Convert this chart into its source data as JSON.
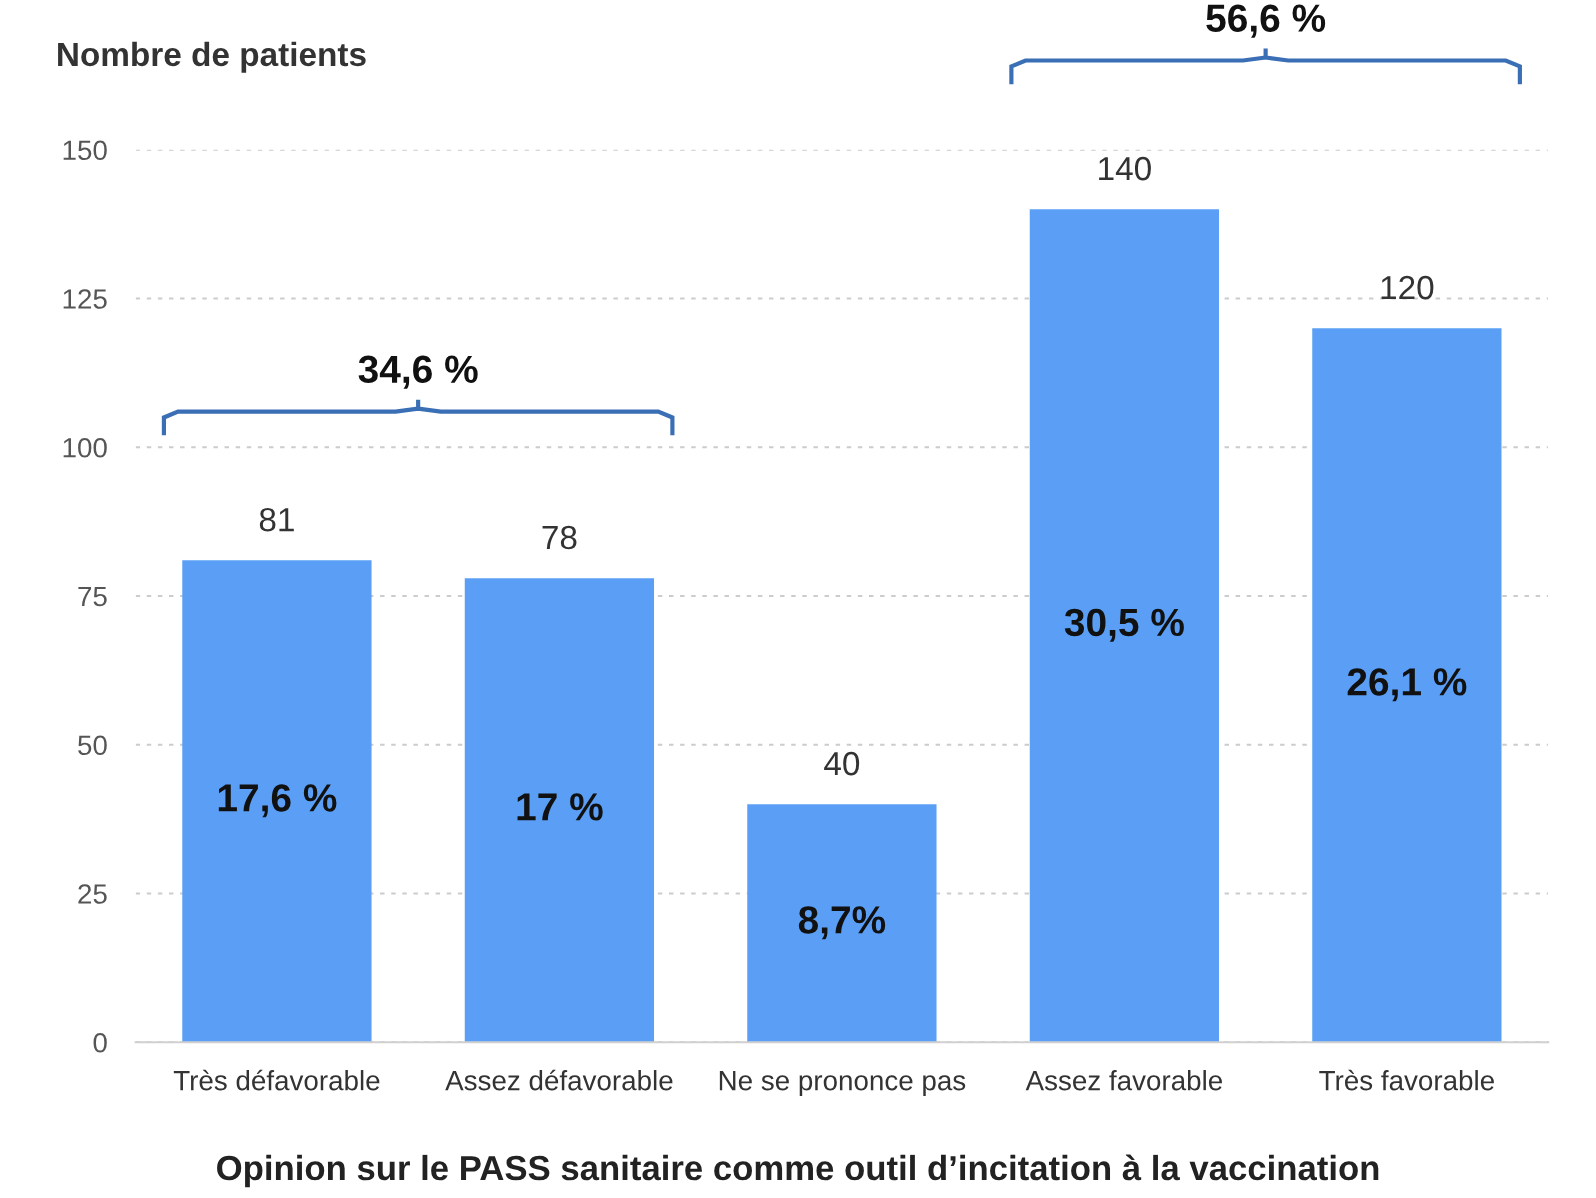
{
  "chart_data": {
    "type": "bar",
    "ylabel": "Nombre de patients",
    "xlabel": "Opinion sur le PASS sanitaire comme outil d’incitation à la vaccination",
    "categories": [
      "Très défavorable",
      "Assez défavorable",
      "Ne se prononce pas",
      "Assez favorable",
      "Très favorable"
    ],
    "values": [
      81,
      78,
      40,
      140,
      120
    ],
    "color": "#5a9ff5",
    "data_labels": true,
    "ylim": [
      0,
      150
    ],
    "yticks": [
      0,
      25,
      50,
      75,
      100,
      125,
      150
    ],
    "grid": "y",
    "annotations": [
      "17,6 %",
      "17 %",
      "8,7%",
      "30,5 %",
      "26,1 %",
      "34,6 %",
      "56,6 %"
    ]
  }
}
